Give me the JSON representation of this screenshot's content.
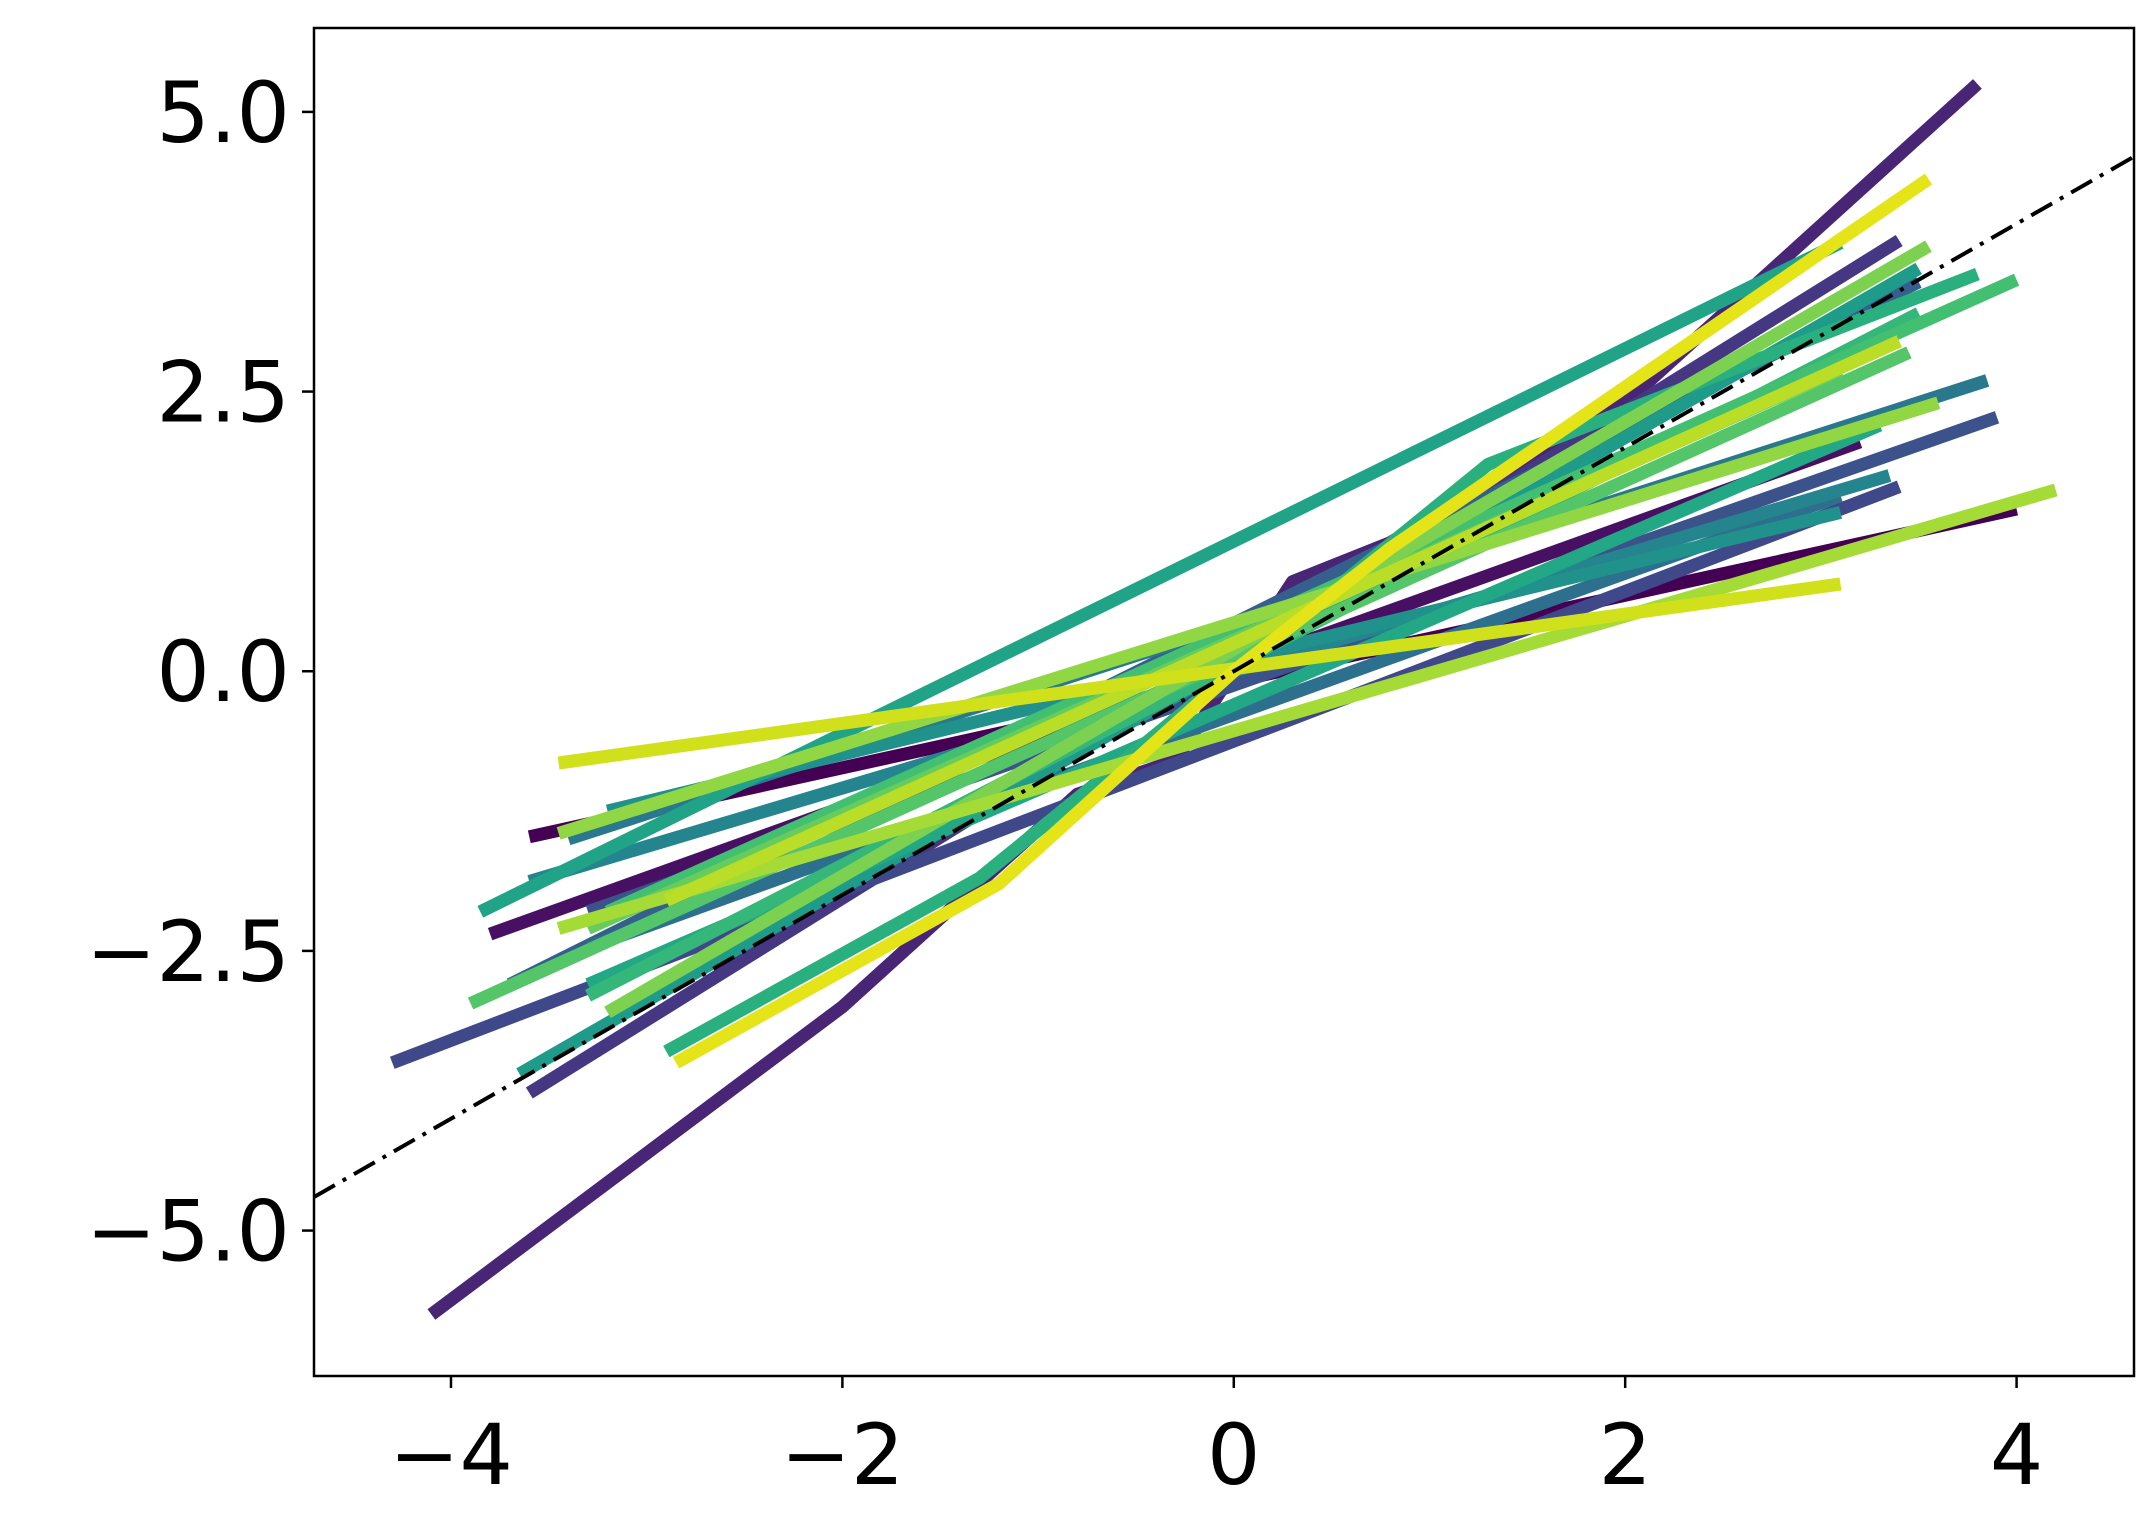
{
  "chart_data": {
    "type": "line",
    "title": "",
    "xlabel": "",
    "ylabel": "",
    "xlim": [
      -4.7,
      4.6
    ],
    "ylim": [
      -6.3,
      5.75
    ],
    "xticks": [
      -4,
      -2,
      0,
      2,
      4
    ],
    "yticks": [
      -5.0,
      -2.5,
      0.0,
      2.5,
      5.0
    ],
    "xtick_labels": [
      "−4",
      "−2",
      "0",
      "2",
      "4"
    ],
    "ytick_labels": [
      "−5.0",
      "−2.5",
      "0.0",
      "2.5",
      "5.0"
    ],
    "grid": false,
    "legend": "none",
    "reference_line": {
      "style": "dash-dot",
      "color": "#000000",
      "slope": 1.0,
      "intercept": 0.0
    },
    "series": [
      {
        "color": "#440154",
        "x": [
          -3.6,
          4.0
        ],
        "y": [
          -1.48,
          1.45
        ]
      },
      {
        "color": "#471063",
        "x": [
          -3.8,
          3.2
        ],
        "y": [
          -2.35,
          2.05
        ]
      },
      {
        "color": "#482575",
        "x": [
          -4.1,
          -2.0,
          -0.8,
          -0.3,
          0,
          0.3,
          0.8,
          2.0,
          3.8
        ],
        "y": [
          -5.75,
          -3.0,
          -1.1,
          -0.8,
          0,
          0.8,
          1.15,
          2.4,
          5.25
        ]
      },
      {
        "color": "#453781",
        "x": [
          -3.6,
          3.4
        ],
        "y": [
          -3.77,
          3.85
        ]
      },
      {
        "color": "#3f4889",
        "x": [
          -4.3,
          3.4
        ],
        "y": [
          -3.5,
          1.65
        ]
      },
      {
        "color": "#3b528b",
        "x": [
          -3.3,
          3.9
        ],
        "y": [
          -2.15,
          2.27
        ]
      },
      {
        "color": "#35608d",
        "x": [
          -3.7,
          3.5
        ],
        "y": [
          -2.8,
          3.48
        ]
      },
      {
        "color": "#2d708e",
        "x": [
          -3.3,
          3.1
        ],
        "y": [
          -2.47,
          1.57
        ]
      },
      {
        "color": "#2a788e",
        "x": [
          -3.4,
          3.85
        ],
        "y": [
          -1.5,
          2.6
        ]
      },
      {
        "color": "#25858e",
        "x": [
          -3.6,
          3.35
        ],
        "y": [
          -1.88,
          1.75
        ]
      },
      {
        "color": "#21918c",
        "x": [
          -3.2,
          3.1
        ],
        "y": [
          -1.25,
          1.42
        ]
      },
      {
        "color": "#1e9c89",
        "x": [
          -3.65,
          3.5
        ],
        "y": [
          -3.6,
          3.6
        ]
      },
      {
        "color": "#20a386",
        "x": [
          -3.85,
          3.1
        ],
        "y": [
          -2.15,
          3.83
        ]
      },
      {
        "color": "#22a884",
        "x": [
          -3.3,
          3.3
        ],
        "y": [
          -2.8,
          2.2
        ]
      },
      {
        "color": "#2ab07f",
        "x": [
          -2.9,
          -1.3,
          0,
          1.3,
          3.8
        ],
        "y": [
          -3.4,
          -1.85,
          0,
          1.85,
          3.55
        ]
      },
      {
        "color": "#35b779",
        "x": [
          -3.3,
          3.5
        ],
        "y": [
          -2.9,
          3.2
        ]
      },
      {
        "color": "#43bf71",
        "x": [
          -3.2,
          4.0
        ],
        "y": [
          -2.15,
          3.5
        ]
      },
      {
        "color": "#54c568",
        "x": [
          -3.9,
          3.45
        ],
        "y": [
          -2.97,
          2.85
        ]
      },
      {
        "color": "#67cc5c",
        "x": [
          -3.3,
          3.1
        ],
        "y": [
          -2.3,
          2.7
        ]
      },
      {
        "color": "#7cd250",
        "x": [
          -3.2,
          3.55
        ],
        "y": [
          -3.05,
          3.8
        ]
      },
      {
        "color": "#90d743",
        "x": [
          -3.45,
          3.6
        ],
        "y": [
          -1.45,
          2.4
        ]
      },
      {
        "color": "#a5db36",
        "x": [
          -3.45,
          4.2
        ],
        "y": [
          -2.3,
          1.62
        ]
      },
      {
        "color": "#bade28",
        "x": [
          -2.9,
          3.4
        ],
        "y": [
          -2.05,
          2.95
        ]
      },
      {
        "color": "#d0e11c",
        "x": [
          -3.45,
          3.1
        ],
        "y": [
          -0.82,
          0.78
        ]
      },
      {
        "color": "#e4e419",
        "x": [
          -2.85,
          -1.2,
          0,
          0.8,
          3.55
        ],
        "y": [
          -3.5,
          -1.9,
          0,
          1.1,
          4.4
        ]
      }
    ]
  }
}
